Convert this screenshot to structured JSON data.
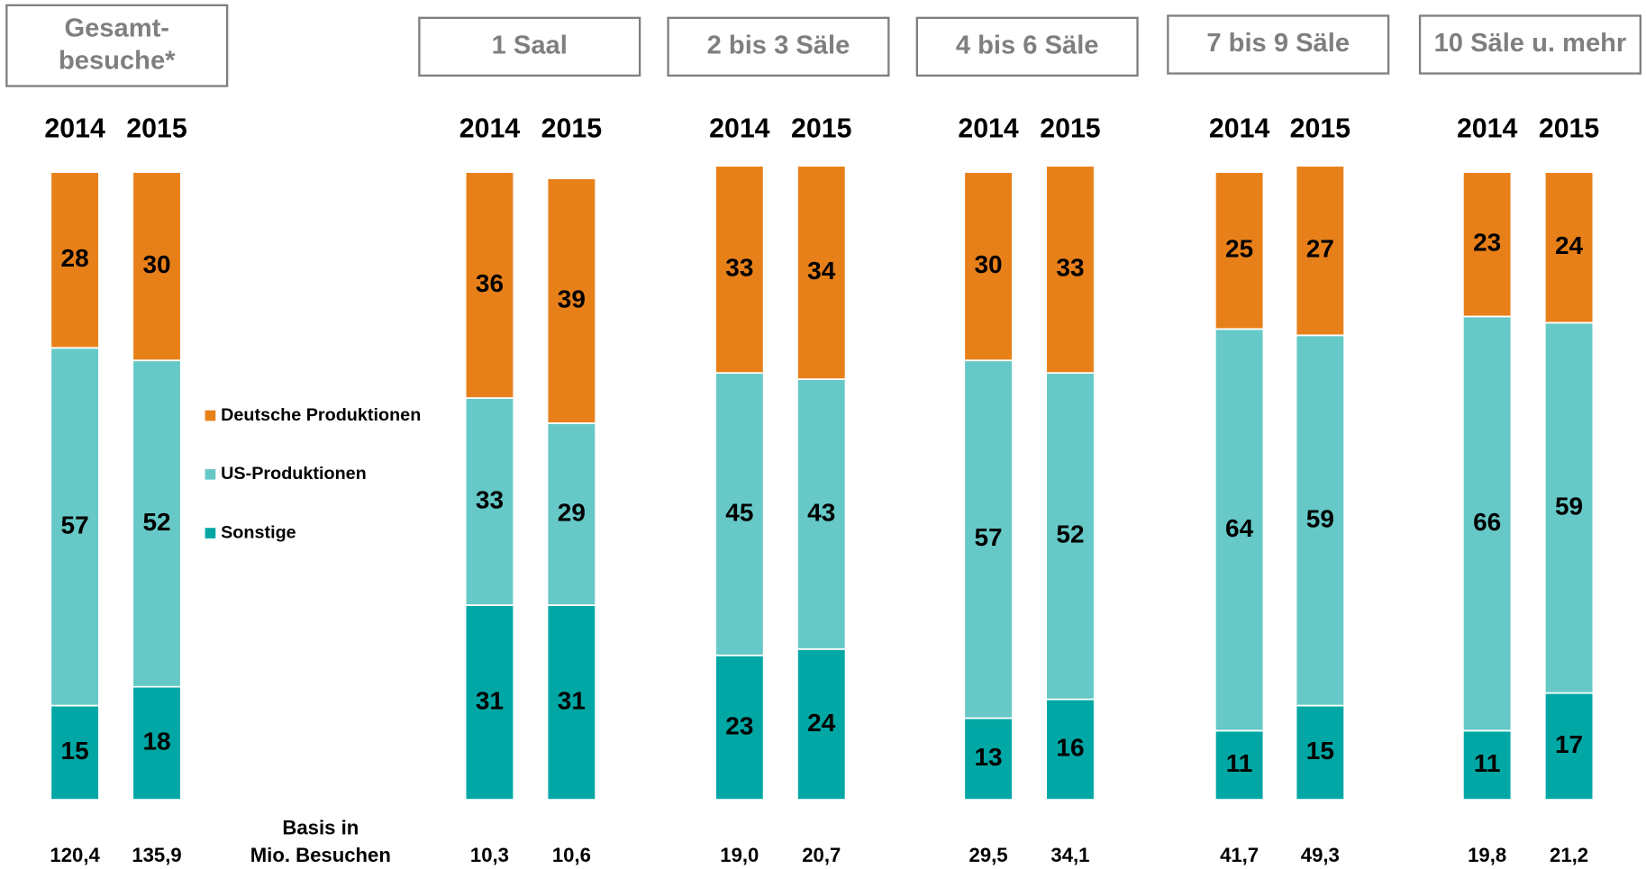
{
  "chart_data": {
    "type": "stacked_bar",
    "ylim": [
      0,
      101
    ],
    "groups": [
      {
        "title": [
          "Gesamt-",
          "besuche*"
        ],
        "categories": [
          "2014",
          "2015"
        ],
        "basis": [
          "120,4",
          "135,9"
        ]
      },
      {
        "title": [
          "1 Saal"
        ],
        "categories": [
          "2014",
          "2015"
        ],
        "basis": [
          "10,3",
          "10,6"
        ]
      },
      {
        "title": [
          "2 bis 3 Säle"
        ],
        "categories": [
          "2014",
          "2015"
        ],
        "basis": [
          "19,0",
          "20,7"
        ]
      },
      {
        "title": [
          "4 bis 6 Säle"
        ],
        "categories": [
          "2014",
          "2015"
        ],
        "basis": [
          "29,5",
          "34,1"
        ]
      },
      {
        "title": [
          "7 bis 9 Säle"
        ],
        "categories": [
          "2014",
          "2015"
        ],
        "basis": [
          "41,7",
          "49,3"
        ]
      },
      {
        "title": [
          "10 Säle u. mehr"
        ],
        "categories": [
          "2014",
          "2015"
        ],
        "basis": [
          "19,8",
          "21,2"
        ]
      }
    ],
    "series": [
      {
        "name": "Deutsche Produktionen",
        "color": "#E8801A",
        "values": [
          [
            28,
            30
          ],
          [
            36,
            39
          ],
          [
            33,
            34
          ],
          [
            30,
            33
          ],
          [
            25,
            27
          ],
          [
            23,
            24
          ]
        ]
      },
      {
        "name": "US-Produktionen",
        "color": "#66C9C7",
        "values": [
          [
            57,
            52
          ],
          [
            33,
            29
          ],
          [
            45,
            43
          ],
          [
            57,
            52
          ],
          [
            64,
            59
          ],
          [
            66,
            59
          ]
        ]
      },
      {
        "name": "Sonstige",
        "color": "#00A7A4",
        "values": [
          [
            15,
            18
          ],
          [
            31,
            31
          ],
          [
            23,
            24
          ],
          [
            13,
            16
          ],
          [
            11,
            15
          ],
          [
            11,
            17
          ]
        ]
      }
    ],
    "basis_label": [
      "Basis in",
      "Mio. Besuchen"
    ]
  }
}
